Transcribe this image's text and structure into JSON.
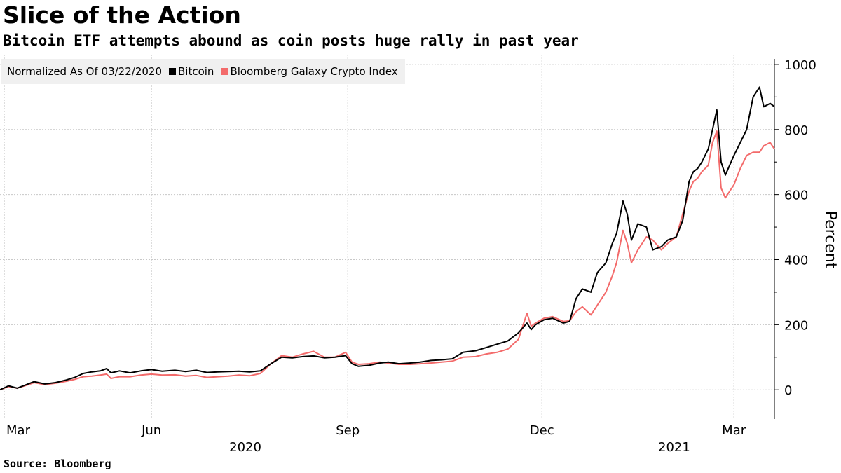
{
  "title": "Slice of the Action",
  "subtitle": "Bitcoin ETF attempts abound as coin posts huge rally in past year",
  "source": "Source:  Bloomberg",
  "legend": {
    "note": "Normalized As Of 03/22/2020",
    "items": [
      {
        "label": "Bitcoin",
        "color": "#000000"
      },
      {
        "label": "Bloomberg Galaxy Crypto Index",
        "color": "#f36b6b"
      }
    ]
  },
  "chart_data": {
    "type": "line",
    "ylabel": "Percent",
    "ylim": [
      -90,
      1030
    ],
    "yticks": [
      0,
      200,
      400,
      600,
      800,
      1000
    ],
    "grid": true,
    "legend_position": "top-left",
    "x_axis": {
      "start": "2020-03-22",
      "end": "2021-03-20",
      "month_ticks": [
        {
          "label": "Mar",
          "date": "2020-03-24"
        },
        {
          "label": "Jun",
          "date": "2020-06-01"
        },
        {
          "label": "Sep",
          "date": "2020-09-01"
        },
        {
          "label": "Dec",
          "date": "2020-12-01"
        },
        {
          "label": "Mar",
          "date": "2021-03-01"
        }
      ],
      "year_labels": [
        {
          "label": "2020",
          "date": "2020-07-15"
        },
        {
          "label": "2021",
          "date": "2021-02-01"
        }
      ],
      "gridline_dates": [
        "2020-03-24",
        "2020-06-01",
        "2020-09-01",
        "2020-12-01",
        "2021-03-01"
      ]
    },
    "series": [
      {
        "name": "Bitcoin",
        "color": "#000000",
        "points": [
          [
            "2020-03-22",
            0
          ],
          [
            "2020-03-26",
            12
          ],
          [
            "2020-03-30",
            5
          ],
          [
            "2020-04-03",
            15
          ],
          [
            "2020-04-07",
            25
          ],
          [
            "2020-04-12",
            18
          ],
          [
            "2020-04-17",
            22
          ],
          [
            "2020-04-22",
            30
          ],
          [
            "2020-04-26",
            38
          ],
          [
            "2020-04-30",
            50
          ],
          [
            "2020-05-04",
            55
          ],
          [
            "2020-05-08",
            58
          ],
          [
            "2020-05-11",
            65
          ],
          [
            "2020-05-13",
            52
          ],
          [
            "2020-05-17",
            58
          ],
          [
            "2020-05-22",
            52
          ],
          [
            "2020-05-27",
            58
          ],
          [
            "2020-06-01",
            62
          ],
          [
            "2020-06-06",
            57
          ],
          [
            "2020-06-12",
            60
          ],
          [
            "2020-06-17",
            56
          ],
          [
            "2020-06-22",
            60
          ],
          [
            "2020-06-27",
            53
          ],
          [
            "2020-07-02",
            55
          ],
          [
            "2020-07-07",
            56
          ],
          [
            "2020-07-12",
            57
          ],
          [
            "2020-07-17",
            55
          ],
          [
            "2020-07-22",
            58
          ],
          [
            "2020-07-27",
            80
          ],
          [
            "2020-08-01",
            100
          ],
          [
            "2020-08-06",
            98
          ],
          [
            "2020-08-11",
            102
          ],
          [
            "2020-08-16",
            104
          ],
          [
            "2020-08-21",
            98
          ],
          [
            "2020-08-26",
            100
          ],
          [
            "2020-08-31",
            105
          ],
          [
            "2020-09-03",
            80
          ],
          [
            "2020-09-06",
            72
          ],
          [
            "2020-09-11",
            75
          ],
          [
            "2020-09-16",
            82
          ],
          [
            "2020-09-20",
            85
          ],
          [
            "2020-09-25",
            80
          ],
          [
            "2020-09-30",
            82
          ],
          [
            "2020-10-05",
            85
          ],
          [
            "2020-10-10",
            90
          ],
          [
            "2020-10-15",
            92
          ],
          [
            "2020-10-20",
            95
          ],
          [
            "2020-10-25",
            115
          ],
          [
            "2020-10-31",
            120
          ],
          [
            "2020-11-05",
            130
          ],
          [
            "2020-11-10",
            140
          ],
          [
            "2020-11-15",
            150
          ],
          [
            "2020-11-20",
            175
          ],
          [
            "2020-11-24",
            205
          ],
          [
            "2020-11-26",
            185
          ],
          [
            "2020-11-28",
            200
          ],
          [
            "2020-12-02",
            215
          ],
          [
            "2020-12-06",
            220
          ],
          [
            "2020-12-11",
            205
          ],
          [
            "2020-12-14",
            210
          ],
          [
            "2020-12-17",
            280
          ],
          [
            "2020-12-20",
            310
          ],
          [
            "2020-12-24",
            300
          ],
          [
            "2020-12-27",
            360
          ],
          [
            "2020-12-31",
            390
          ],
          [
            "2021-01-03",
            450
          ],
          [
            "2021-01-05",
            480
          ],
          [
            "2021-01-08",
            580
          ],
          [
            "2021-01-10",
            540
          ],
          [
            "2021-01-12",
            460
          ],
          [
            "2021-01-15",
            510
          ],
          [
            "2021-01-19",
            500
          ],
          [
            "2021-01-22",
            430
          ],
          [
            "2021-01-26",
            440
          ],
          [
            "2021-01-29",
            460
          ],
          [
            "2021-02-02",
            470
          ],
          [
            "2021-02-05",
            520
          ],
          [
            "2021-02-08",
            640
          ],
          [
            "2021-02-10",
            670
          ],
          [
            "2021-02-12",
            680
          ],
          [
            "2021-02-14",
            700
          ],
          [
            "2021-02-17",
            740
          ],
          [
            "2021-02-19",
            800
          ],
          [
            "2021-02-21",
            860
          ],
          [
            "2021-02-23",
            700
          ],
          [
            "2021-02-25",
            660
          ],
          [
            "2021-02-27",
            690
          ],
          [
            "2021-03-01",
            720
          ],
          [
            "2021-03-04",
            760
          ],
          [
            "2021-03-07",
            800
          ],
          [
            "2021-03-10",
            900
          ],
          [
            "2021-03-13",
            930
          ],
          [
            "2021-03-15",
            870
          ],
          [
            "2021-03-18",
            880
          ],
          [
            "2021-03-20",
            870
          ]
        ]
      },
      {
        "name": "Bloomberg Galaxy Crypto Index",
        "color": "#f36b6b",
        "points": [
          [
            "2020-03-22",
            0
          ],
          [
            "2020-03-26",
            10
          ],
          [
            "2020-03-30",
            5
          ],
          [
            "2020-04-03",
            13
          ],
          [
            "2020-04-07",
            22
          ],
          [
            "2020-04-12",
            16
          ],
          [
            "2020-04-17",
            20
          ],
          [
            "2020-04-22",
            26
          ],
          [
            "2020-04-26",
            32
          ],
          [
            "2020-04-30",
            40
          ],
          [
            "2020-05-04",
            42
          ],
          [
            "2020-05-08",
            45
          ],
          [
            "2020-05-11",
            48
          ],
          [
            "2020-05-13",
            35
          ],
          [
            "2020-05-17",
            40
          ],
          [
            "2020-05-22",
            40
          ],
          [
            "2020-05-27",
            45
          ],
          [
            "2020-06-01",
            48
          ],
          [
            "2020-06-06",
            45
          ],
          [
            "2020-06-12",
            46
          ],
          [
            "2020-06-17",
            42
          ],
          [
            "2020-06-22",
            44
          ],
          [
            "2020-06-27",
            38
          ],
          [
            "2020-07-02",
            40
          ],
          [
            "2020-07-07",
            42
          ],
          [
            "2020-07-12",
            45
          ],
          [
            "2020-07-17",
            43
          ],
          [
            "2020-07-22",
            50
          ],
          [
            "2020-07-27",
            80
          ],
          [
            "2020-08-01",
            105
          ],
          [
            "2020-08-06",
            100
          ],
          [
            "2020-08-11",
            110
          ],
          [
            "2020-08-16",
            118
          ],
          [
            "2020-08-21",
            100
          ],
          [
            "2020-08-26",
            100
          ],
          [
            "2020-08-31",
            115
          ],
          [
            "2020-09-03",
            85
          ],
          [
            "2020-09-06",
            78
          ],
          [
            "2020-09-11",
            80
          ],
          [
            "2020-09-16",
            85
          ],
          [
            "2020-09-20",
            82
          ],
          [
            "2020-09-25",
            78
          ],
          [
            "2020-09-30",
            78
          ],
          [
            "2020-10-05",
            80
          ],
          [
            "2020-10-10",
            82
          ],
          [
            "2020-10-15",
            85
          ],
          [
            "2020-10-20",
            88
          ],
          [
            "2020-10-25",
            100
          ],
          [
            "2020-10-31",
            102
          ],
          [
            "2020-11-05",
            110
          ],
          [
            "2020-11-10",
            115
          ],
          [
            "2020-11-15",
            125
          ],
          [
            "2020-11-20",
            155
          ],
          [
            "2020-11-24",
            235
          ],
          [
            "2020-11-26",
            195
          ],
          [
            "2020-11-28",
            205
          ],
          [
            "2020-12-02",
            220
          ],
          [
            "2020-12-06",
            225
          ],
          [
            "2020-12-11",
            210
          ],
          [
            "2020-12-14",
            212
          ],
          [
            "2020-12-17",
            240
          ],
          [
            "2020-12-20",
            255
          ],
          [
            "2020-12-24",
            230
          ],
          [
            "2020-12-27",
            260
          ],
          [
            "2020-12-31",
            300
          ],
          [
            "2021-01-03",
            350
          ],
          [
            "2021-01-05",
            390
          ],
          [
            "2021-01-08",
            490
          ],
          [
            "2021-01-10",
            450
          ],
          [
            "2021-01-12",
            390
          ],
          [
            "2021-01-15",
            430
          ],
          [
            "2021-01-19",
            470
          ],
          [
            "2021-01-22",
            460
          ],
          [
            "2021-01-26",
            430
          ],
          [
            "2021-01-29",
            450
          ],
          [
            "2021-02-02",
            470
          ],
          [
            "2021-02-05",
            540
          ],
          [
            "2021-02-08",
            610
          ],
          [
            "2021-02-10",
            640
          ],
          [
            "2021-02-12",
            650
          ],
          [
            "2021-02-14",
            670
          ],
          [
            "2021-02-17",
            690
          ],
          [
            "2021-02-19",
            760
          ],
          [
            "2021-02-21",
            795
          ],
          [
            "2021-02-23",
            620
          ],
          [
            "2021-02-25",
            590
          ],
          [
            "2021-02-27",
            610
          ],
          [
            "2021-03-01",
            630
          ],
          [
            "2021-03-04",
            680
          ],
          [
            "2021-03-07",
            720
          ],
          [
            "2021-03-10",
            730
          ],
          [
            "2021-03-13",
            730
          ],
          [
            "2021-03-15",
            750
          ],
          [
            "2021-03-18",
            760
          ],
          [
            "2021-03-20",
            740
          ]
        ]
      }
    ]
  }
}
